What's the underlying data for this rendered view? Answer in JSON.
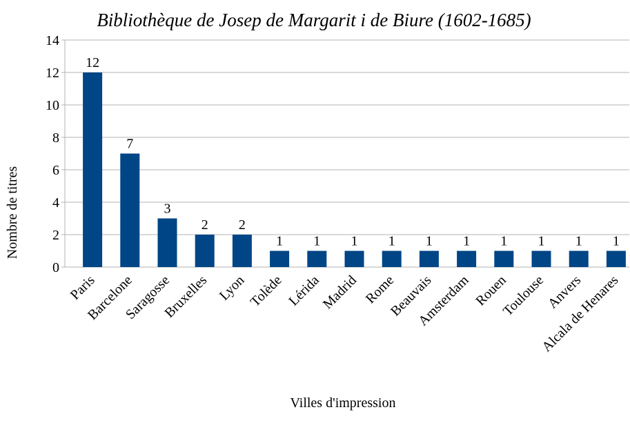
{
  "chart_data": {
    "type": "bar",
    "title": "Bibliothèque de Josep de Margarit i de Biure (1602-1685)",
    "x_label": "Villes d'impression",
    "y_label": "Nombre de titres",
    "categories": [
      "Paris",
      "Barcelone",
      "Saragosse",
      "Bruxelles",
      "Lyon",
      "Tolède",
      "Lérida",
      "Madrid",
      "Rome",
      "Beauvais",
      "Amsterdam",
      "Rouen",
      "Toulouse",
      "Anvers",
      "Alcala de Henares"
    ],
    "values": [
      12,
      7,
      3,
      2,
      2,
      1,
      1,
      1,
      1,
      1,
      1,
      1,
      1,
      1,
      1
    ],
    "color": "#004586",
    "ylim": [
      0,
      14
    ],
    "yticks": [
      0,
      2,
      4,
      6,
      8,
      10,
      12,
      14
    ],
    "grid": true,
    "data_labels": true
  }
}
